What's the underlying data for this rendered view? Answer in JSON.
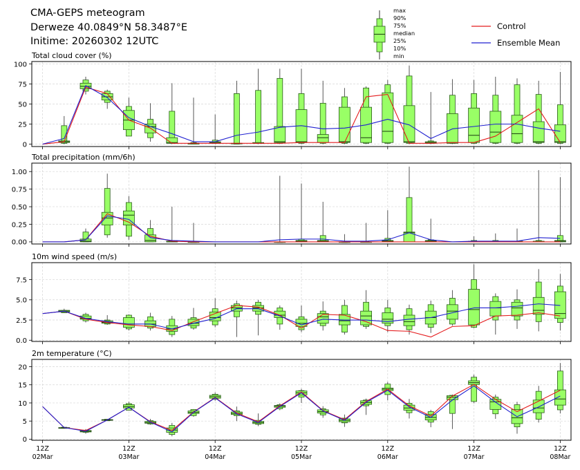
{
  "header": {
    "title": "CMA-GEPS meteogram",
    "location": "Derweze 40.0849°N 58.3487°E",
    "initime": "Initime: 20260302 12UTC"
  },
  "legend": {
    "box_labels": [
      "max",
      "90%",
      "75%",
      "median",
      "25%",
      "10%",
      "min"
    ],
    "lines": [
      {
        "name": "Control",
        "color": "#e41a1c"
      },
      {
        "name": "Ensemble Mean",
        "color": "#1f1fd0"
      }
    ]
  },
  "colors": {
    "box_fill": "#99ff66",
    "box_edge": "#2a5a1a",
    "control": "#e41a1c",
    "mean": "#1f1fd0",
    "grid": "#d6d6d6"
  },
  "chart_data": [
    {
      "type": "box",
      "title": "Total cloud cover (%)",
      "ylim": [
        -3,
        103
      ],
      "yticks": [
        0,
        25,
        50,
        75,
        100
      ],
      "ytick_labels": [
        "0",
        "25",
        "50",
        "75",
        "100"
      ],
      "grid": true,
      "x_hours": [
        0,
        6,
        12,
        18,
        24,
        30,
        36,
        42,
        48,
        54,
        60,
        66,
        72,
        78,
        84,
        90,
        96,
        102,
        108,
        114,
        120,
        126,
        132,
        138,
        144
      ],
      "boxes": [
        null,
        [
          0,
          1,
          2,
          3,
          4,
          23,
          35
        ],
        [
          62,
          66,
          69,
          72,
          76,
          80,
          84
        ],
        [
          44,
          52,
          55,
          59,
          63,
          66,
          68
        ],
        [
          15,
          10,
          18,
          30,
          42,
          47,
          58
        ],
        [
          3,
          8,
          14,
          22,
          25,
          31,
          51
        ],
        [
          0,
          1,
          1,
          2,
          8,
          41,
          76
        ],
        [
          0,
          0,
          0,
          1,
          1,
          2,
          58
        ],
        [
          0,
          1,
          1,
          2,
          3,
          5,
          37
        ],
        [
          0,
          0,
          1,
          1,
          1,
          63,
          79
        ],
        [
          0,
          1,
          1,
          1,
          2,
          67,
          94
        ],
        [
          0,
          1,
          2,
          3,
          22,
          82,
          94
        ],
        [
          0,
          1,
          2,
          3,
          43,
          63,
          94
        ],
        [
          0,
          1,
          2,
          8,
          12,
          51,
          79
        ],
        [
          0,
          1,
          2,
          3,
          46,
          59,
          70
        ],
        [
          0,
          1,
          2,
          8,
          46,
          70,
          72
        ],
        [
          0,
          1,
          2,
          16,
          64,
          74,
          80
        ],
        [
          0,
          1,
          2,
          3,
          48,
          85,
          98
        ],
        [
          0,
          1,
          1,
          2,
          3,
          4,
          65
        ],
        [
          0,
          1,
          1,
          2,
          38,
          61,
          81
        ],
        [
          0,
          1,
          2,
          11,
          45,
          63,
          80
        ],
        [
          0,
          1,
          2,
          15,
          41,
          61,
          84
        ],
        [
          0,
          1,
          2,
          13,
          36,
          74,
          82
        ],
        [
          0,
          1,
          2,
          3,
          28,
          62,
          79
        ],
        [
          0,
          1,
          2,
          3,
          24,
          49,
          90
        ]
      ],
      "control": [
        0,
        3,
        71,
        63,
        30,
        20,
        1,
        1,
        1,
        1,
        1,
        1,
        2,
        2,
        2,
        59,
        62,
        1,
        1,
        2,
        2,
        10,
        27,
        44,
        2
      ],
      "mean": [
        0,
        7,
        73,
        58,
        33,
        22,
        13,
        3,
        3,
        11,
        15,
        21,
        23,
        19,
        20,
        24,
        31,
        24,
        7,
        19,
        22,
        25,
        25,
        20,
        16
      ]
    },
    {
      "type": "box",
      "title": "Total precipitation (mm/6h)",
      "ylim": [
        -0.03,
        1.12
      ],
      "yticks": [
        0,
        0.25,
        0.5,
        0.75,
        1.0
      ],
      "ytick_labels": [
        "0.00",
        "0.25",
        "0.50",
        "0.75",
        "1.00"
      ],
      "grid": true,
      "x_hours": [
        0,
        6,
        12,
        18,
        24,
        30,
        36,
        42,
        48,
        54,
        60,
        66,
        72,
        78,
        84,
        90,
        96,
        102,
        108,
        114,
        120,
        126,
        132,
        138,
        144
      ],
      "boxes": [
        null,
        null,
        [
          0,
          0,
          0,
          0.01,
          0.04,
          0.14,
          0.19
        ],
        [
          0.06,
          0.1,
          0.24,
          0.34,
          0.42,
          0.76,
          0.97
        ],
        [
          0.03,
          0.08,
          0.24,
          0.38,
          0.44,
          0.56,
          0.65
        ],
        [
          0,
          0,
          0,
          0.02,
          0.1,
          0.19,
          0.31
        ],
        [
          0,
          0,
          0,
          0,
          0.01,
          0.01,
          0.5
        ],
        [
          0,
          0,
          0,
          0,
          0,
          0,
          0.27
        ],
        null,
        null,
        null,
        [
          0,
          0,
          0,
          0,
          0,
          0,
          0.94
        ],
        [
          0,
          0,
          0,
          0.01,
          0.02,
          0.04,
          0.83
        ],
        [
          0,
          0,
          0,
          0.01,
          0.02,
          0.09,
          0.57
        ],
        [
          0,
          0,
          0,
          0,
          0,
          0,
          0.11
        ],
        [
          0,
          0,
          0,
          0,
          0,
          0.01,
          0.27
        ],
        [
          0,
          0,
          0,
          0.01,
          0.02,
          0.05,
          0.45
        ],
        [
          0,
          0,
          0,
          0.13,
          0.14,
          0.63,
          1.07
        ],
        [
          0,
          0,
          0,
          0.01,
          0.02,
          0.03,
          0.33
        ],
        null,
        [
          0,
          0,
          0,
          0,
          0.01,
          0.02,
          0.08
        ],
        [
          0,
          0,
          0,
          0,
          0.01,
          0.02,
          0.12
        ],
        [
          0,
          0,
          0,
          0,
          0.01,
          0.01,
          0.19
        ],
        [
          0,
          0,
          0,
          0,
          0.01,
          0.02,
          1.02
        ],
        [
          0,
          0,
          0,
          0.01,
          0.02,
          0.09,
          0.92
        ]
      ],
      "control": [
        0,
        0,
        0.03,
        0.4,
        0.28,
        0.08,
        0.01,
        0,
        0,
        0,
        0,
        0,
        0,
        0,
        0,
        0,
        0,
        0,
        0,
        0,
        0,
        0,
        0,
        0,
        0
      ],
      "mean": [
        0,
        0,
        0.03,
        0.37,
        0.32,
        0.06,
        0.02,
        0.01,
        0,
        0,
        0,
        0.03,
        0.04,
        0.04,
        0.01,
        0.01,
        0.03,
        0.13,
        0.03,
        0,
        0.01,
        0.01,
        0.01,
        0.06,
        0.05
      ]
    },
    {
      "type": "box",
      "title": "10m wind speed (m/s)",
      "ylim": [
        -0.15,
        9.6
      ],
      "yticks": [
        0.0,
        2.5,
        5.0,
        7.5
      ],
      "ytick_labels": [
        "0.0",
        "2.5",
        "5.0",
        "7.5"
      ],
      "grid": true,
      "x_hours": [
        0,
        6,
        12,
        18,
        24,
        30,
        36,
        42,
        48,
        54,
        60,
        66,
        72,
        78,
        84,
        90,
        96,
        102,
        108,
        114,
        120,
        126,
        132,
        138,
        144
      ],
      "boxes": [
        null,
        [
          3.4,
          3.4,
          3.5,
          3.6,
          3.7,
          3.7,
          3.9
        ],
        [
          2.2,
          2.4,
          2.6,
          2.7,
          3.0,
          3.2,
          3.4
        ],
        [
          1.9,
          2.0,
          2.1,
          2.2,
          2.4,
          2.5,
          3.1
        ],
        [
          1.2,
          1.4,
          1.6,
          2.0,
          2.8,
          3.1,
          3.2
        ],
        [
          1.2,
          1.5,
          1.7,
          2.0,
          2.4,
          2.9,
          3.4
        ],
        [
          0.4,
          0.7,
          1.1,
          1.4,
          1.8,
          2.6,
          3.0
        ],
        [
          1.3,
          1.5,
          1.8,
          2.1,
          2.6,
          2.8,
          4.0
        ],
        [
          1.6,
          1.9,
          2.4,
          2.8,
          3.5,
          3.9,
          5.2
        ],
        [
          0.4,
          2.9,
          3.6,
          4.0,
          4.3,
          4.5,
          4.9
        ],
        [
          0.6,
          3.2,
          3.6,
          4.0,
          4.3,
          4.7,
          5.0
        ],
        [
          1.3,
          2.0,
          2.8,
          3.1,
          3.6,
          4.0,
          4.3
        ],
        [
          1.0,
          1.3,
          1.7,
          2.1,
          2.6,
          2.9,
          4.3
        ],
        [
          1.2,
          1.8,
          2.1,
          2.9,
          3.3,
          3.6,
          4.8
        ],
        [
          0.7,
          1.0,
          1.9,
          2.4,
          3.2,
          4.3,
          5.0
        ],
        [
          1.4,
          1.7,
          1.9,
          3.0,
          3.6,
          4.7,
          6.2
        ],
        [
          1.0,
          1.8,
          2.1,
          2.6,
          3.4,
          4.0,
          5.0
        ],
        [
          0.7,
          1.3,
          1.8,
          2.3,
          3.1,
          3.9,
          4.4
        ],
        [
          0.9,
          1.6,
          2.0,
          2.8,
          3.6,
          4.4,
          4.9
        ],
        [
          1.8,
          2.0,
          2.6,
          3.6,
          4.4,
          5.2,
          6.2
        ],
        [
          1.5,
          1.6,
          1.9,
          3.8,
          6.3,
          7.5,
          9.4
        ],
        [
          0.7,
          2.5,
          3.0,
          4.0,
          4.8,
          5.4,
          5.8
        ],
        [
          1.4,
          2.5,
          3.0,
          4.0,
          4.7,
          5.0,
          6.3
        ],
        [
          1.1,
          2.3,
          3.2,
          3.7,
          5.3,
          7.2,
          8.8
        ],
        [
          1.2,
          2.2,
          2.7,
          3.3,
          6.0,
          6.7,
          8.2
        ]
      ],
      "control": [
        3.3,
        3.6,
        2.6,
        2.2,
        1.9,
        1.7,
        1.2,
        2.3,
        3.3,
        4.3,
        4.1,
        3.1,
        1.5,
        3.2,
        3.1,
        2.3,
        1.2,
        1.1,
        0.4,
        1.7,
        1.8,
        3.0,
        3.1,
        3.4,
        3.0
      ],
      "mean": [
        3.3,
        3.6,
        2.7,
        2.3,
        2.0,
        2.0,
        1.4,
        2.1,
        2.7,
        3.9,
        3.9,
        3.0,
        1.9,
        2.6,
        2.5,
        2.5,
        2.3,
        2.6,
        2.8,
        3.4,
        4.0,
        4.0,
        4.2,
        4.5,
        4.3
      ]
    },
    {
      "type": "box",
      "title": "2m temperature (°C)",
      "ylim": [
        -0.3,
        22
      ],
      "yticks": [
        0,
        5,
        10,
        15,
        20
      ],
      "ytick_labels": [
        "0",
        "5",
        "10",
        "15",
        "20"
      ],
      "grid": true,
      "x_hours": [
        0,
        6,
        12,
        18,
        24,
        30,
        36,
        42,
        48,
        54,
        60,
        66,
        72,
        78,
        84,
        90,
        96,
        102,
        108,
        114,
        120,
        126,
        132,
        138,
        144
      ],
      "boxes": [
        null,
        [
          2.9,
          3.0,
          3.0,
          3.1,
          3.2,
          3.3,
          3.4
        ],
        [
          1.5,
          1.9,
          2.0,
          2.2,
          2.4,
          2.5,
          2.8
        ],
        [
          5.0,
          5.1,
          5.2,
          5.3,
          5.4,
          5.5,
          5.6
        ],
        [
          8.0,
          8.0,
          8.6,
          9.0,
          9.5,
          9.8,
          10.3
        ],
        [
          4.0,
          4.2,
          4.4,
          4.6,
          4.9,
          5.1,
          5.6
        ],
        [
          0.8,
          1.3,
          1.9,
          2.5,
          3.1,
          3.8,
          4.5
        ],
        [
          6.2,
          6.5,
          7.1,
          7.4,
          7.8,
          8.2,
          8.3
        ],
        [
          10.6,
          11.0,
          11.3,
          11.7,
          12.1,
          12.4,
          12.9
        ],
        [
          5.0,
          6.5,
          6.8,
          7.1,
          7.5,
          7.8,
          9.0
        ],
        [
          3.6,
          4.1,
          4.3,
          4.6,
          4.9,
          5.2,
          7.1
        ],
        [
          8.0,
          8.4,
          8.8,
          9.1,
          9.3,
          9.5,
          9.9
        ],
        [
          10.0,
          11.6,
          12.2,
          12.8,
          13.3,
          13.4,
          13.9
        ],
        [
          5.9,
          6.7,
          7.2,
          7.6,
          8.1,
          8.4,
          9.1
        ],
        [
          3.4,
          4.5,
          4.8,
          5.2,
          5.6,
          5.8,
          6.8
        ],
        [
          6.7,
          9.2,
          9.6,
          10.1,
          10.6,
          10.8,
          11.2
        ],
        [
          10.7,
          12.3,
          13.4,
          13.8,
          14.1,
          15.2,
          15.8
        ],
        [
          5.7,
          7.3,
          8.0,
          8.6,
          9.4,
          9.9,
          11.1
        ],
        [
          3.3,
          4.7,
          5.3,
          6.0,
          6.8,
          7.6,
          8.1
        ],
        [
          2.8,
          7.1,
          10.9,
          11.6,
          12.0,
          12.1,
          12.3
        ],
        [
          9.9,
          10.4,
          15.1,
          15.6,
          16.1,
          17.1,
          17.8
        ],
        [
          5.6,
          7.0,
          8.2,
          10.3,
          11.0,
          11.6,
          12.3
        ],
        [
          1.5,
          3.4,
          4.3,
          5.9,
          8.2,
          9.5,
          10.3
        ],
        [
          4.6,
          5.5,
          7.3,
          8.6,
          10.8,
          13.2,
          14.7
        ],
        [
          7.1,
          8.1,
          9.4,
          11.1,
          13.6,
          18.8,
          21.0
        ]
      ],
      "control": [
        9.0,
        3.2,
        2.4,
        5.3,
        8.8,
        4.8,
        2.4,
        7.5,
        11.5,
        7.2,
        4.8,
        9.2,
        13.0,
        7.9,
        5.4,
        10.4,
        13.8,
        9.2,
        6.4,
        11.9,
        15.1,
        11.0,
        7.6,
        10.5,
        13.5
      ],
      "mean": [
        9.0,
        3.2,
        2.2,
        5.3,
        8.8,
        4.7,
        2.0,
        7.4,
        11.4,
        7.0,
        4.6,
        9.0,
        12.8,
        7.8,
        5.2,
        10.2,
        13.5,
        8.9,
        6.0,
        10.8,
        14.7,
        10.2,
        6.2,
        8.9,
        11.9
      ]
    }
  ],
  "x_axis": {
    "tick_hours": [
      0,
      24,
      48,
      72,
      96,
      120,
      144
    ],
    "tick_labels": [
      {
        "hour": "12Z",
        "date": "02Mar"
      },
      {
        "hour": "12Z",
        "date": "03Mar"
      },
      {
        "hour": "12Z",
        "date": "04Mar"
      },
      {
        "hour": "12Z",
        "date": "05Mar"
      },
      {
        "hour": "12Z",
        "date": "06Mar"
      },
      {
        "hour": "12Z",
        "date": "07Mar"
      },
      {
        "hour": "12Z",
        "date": "08Mar"
      }
    ],
    "range_hours": [
      -3,
      147
    ]
  }
}
